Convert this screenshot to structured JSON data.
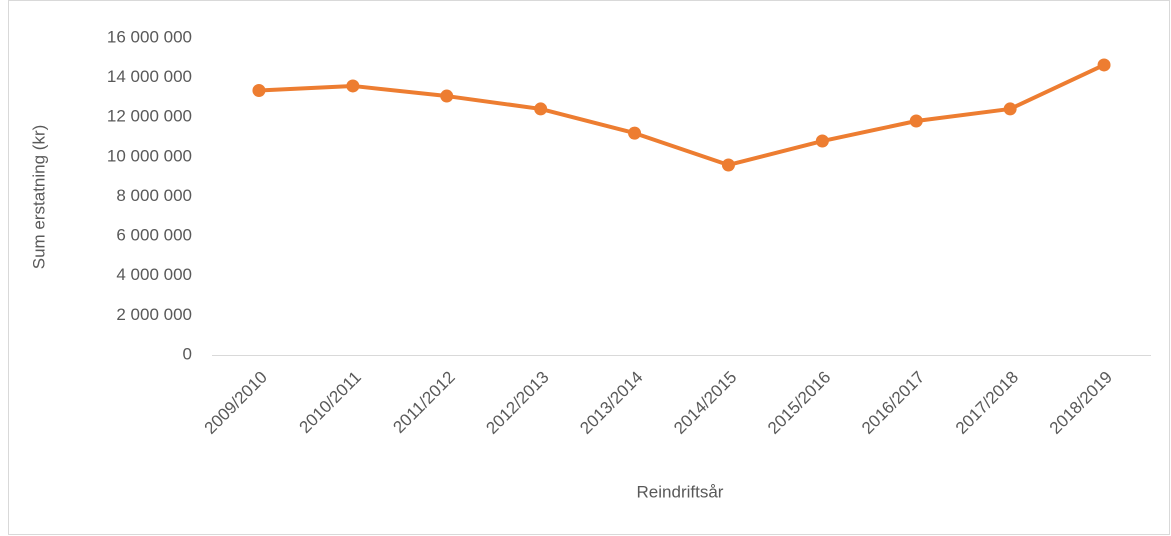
{
  "chart_data": {
    "type": "line",
    "y_label": "Sum erstatning (kr)",
    "x_label": "Reindriftsår",
    "categories": [
      "2009/2010",
      "2010/2011",
      "2011/2012",
      "2012/2013",
      "2013/2014",
      "2014/2015",
      "2015/2016",
      "2016/2017",
      "2017/2018",
      "2018/2019"
    ],
    "series": [
      {
        "name": "Sum erstatning",
        "color": "#ed7d31",
        "values": [
          13350000,
          13580000,
          13070000,
          12420000,
          11200000,
          9590000,
          10800000,
          11810000,
          12420000,
          14640000
        ]
      }
    ],
    "ylim": [
      0,
      16000000
    ],
    "yticks": [
      0,
      {
        "value": 2000000,
        "label": "2 000 000"
      },
      {
        "value": 4000000,
        "label": "4 000 000"
      },
      {
        "value": 6000000,
        "label": "6 000 000"
      },
      {
        "value": 8000000,
        "label": "8 000 000"
      },
      {
        "value": 10000000,
        "label": "10 000 000"
      },
      {
        "value": 12000000,
        "label": "12 000 000"
      },
      {
        "value": 14000000,
        "label": "14 000 000"
      },
      {
        "value": 16000000,
        "label": "16 000 000"
      }
    ],
    "grid": false
  }
}
